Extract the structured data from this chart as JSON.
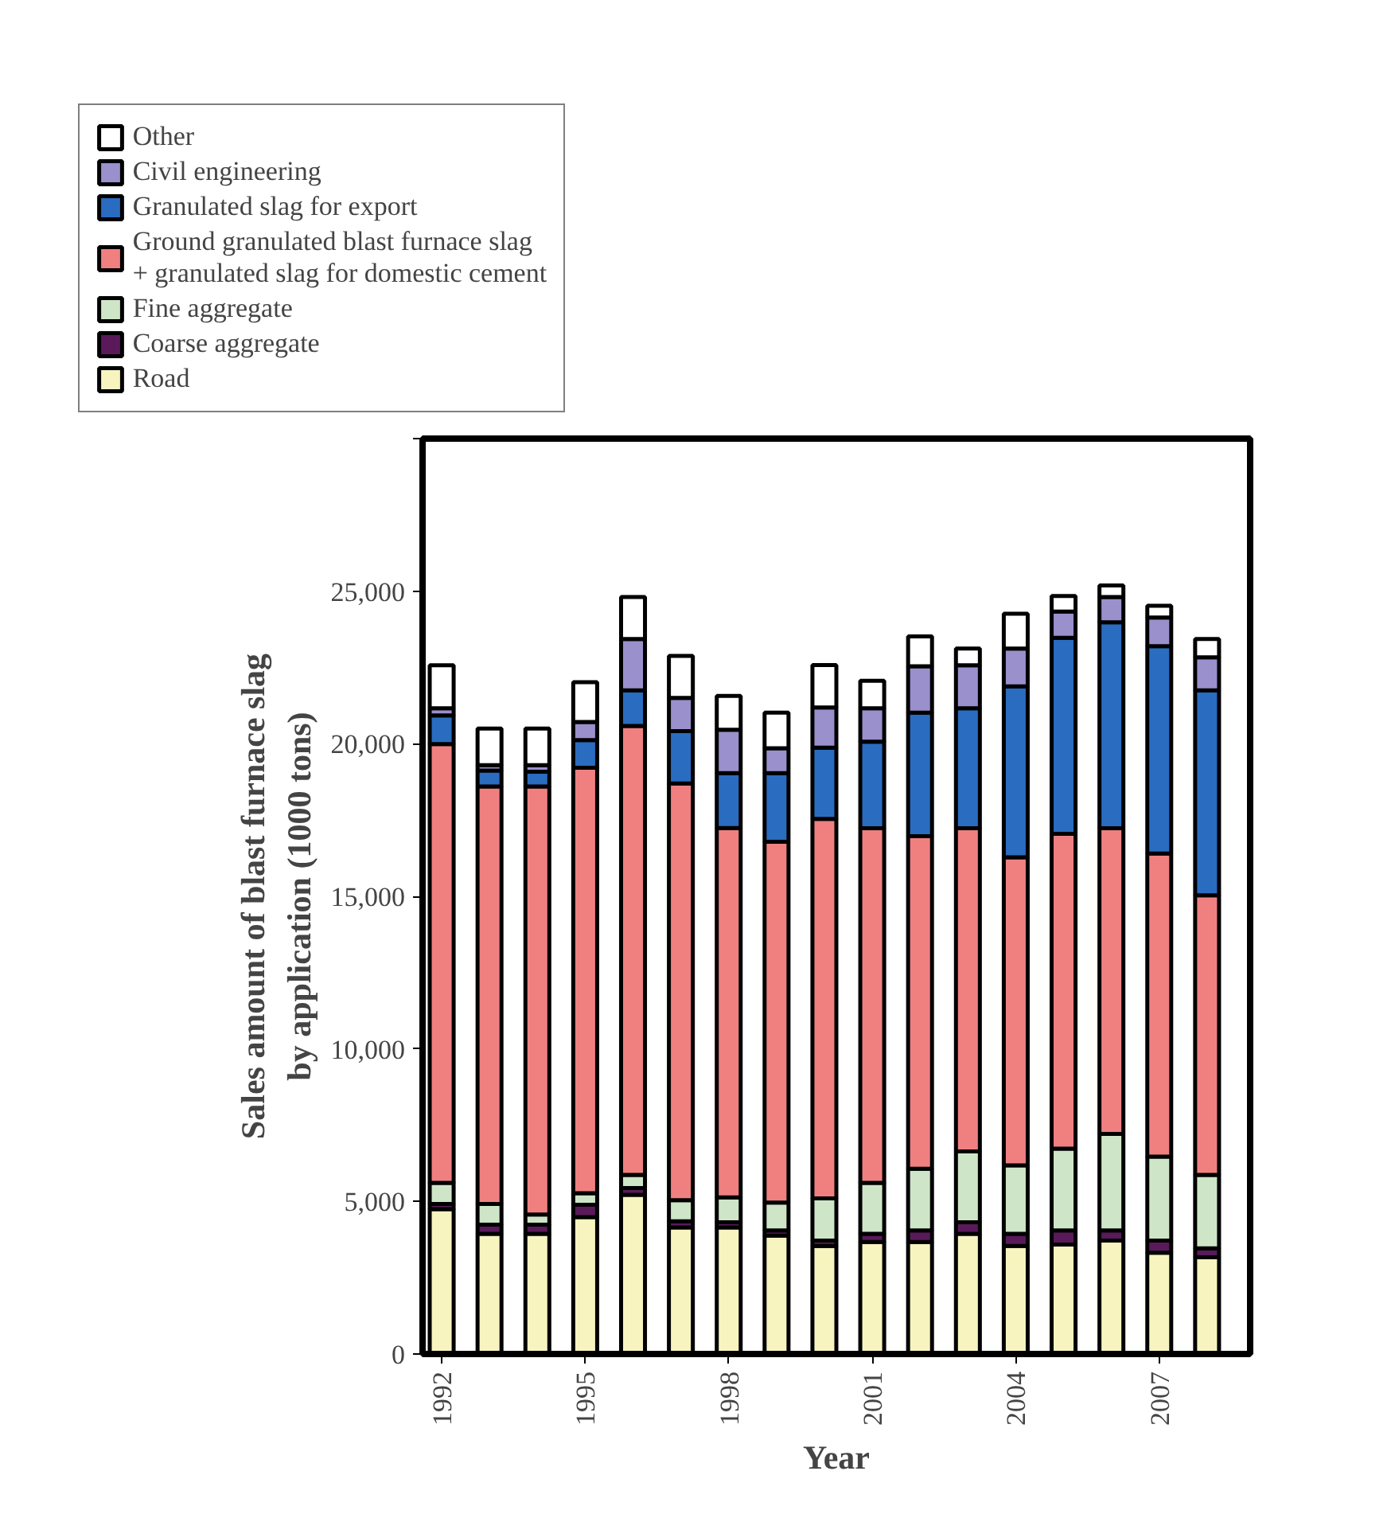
{
  "chart_data": {
    "type": "bar",
    "stacked": true,
    "xlabel": "Year",
    "ylabel": "Sales amount of blast furnace slag\nby application (1000 tons)",
    "x": [
      1992,
      1993,
      1994,
      1995,
      1996,
      1997,
      1998,
      1999,
      2000,
      2001,
      2002,
      2003,
      2004,
      2005,
      2006,
      2007,
      2008
    ],
    "xlim": [
      1991.6,
      2008.9
    ],
    "xticks": [
      1992,
      1995,
      1998,
      2001,
      2004,
      2007
    ],
    "ylim": [
      0,
      30000
    ],
    "yticks": [
      {
        "value": 0,
        "label": "0"
      },
      {
        "value": 5000,
        "label": "5,000"
      },
      {
        "value": 10000,
        "label": "10,000"
      },
      {
        "value": 15000,
        "label": "15,000"
      },
      {
        "value": 20000,
        "label": "20,000"
      },
      {
        "value": 25000,
        "label": "25,000"
      },
      {
        "value": 30000,
        "label": null
      }
    ],
    "grid": false,
    "legend": "top",
    "series": [
      {
        "name": "Road",
        "color": "#f8f4c0",
        "values": [
          4750,
          3940,
          3940,
          4490,
          5220,
          4150,
          4150,
          3880,
          3540,
          3670,
          3670,
          3940,
          3540,
          3590,
          3720,
          3320,
          3170
        ]
      },
      {
        "name": "Coarse aggregate",
        "color": "#5a1a5a",
        "values": [
          170,
          300,
          300,
          400,
          220,
          200,
          170,
          170,
          180,
          270,
          380,
          380,
          400,
          460,
          330,
          400,
          290
        ]
      },
      {
        "name": "Fine aggregate",
        "color": "#cfe5c8",
        "values": [
          690,
          680,
          330,
          380,
          430,
          690,
          810,
          910,
          1380,
          1670,
          2020,
          2320,
          2240,
          2680,
          3160,
          2750,
          2410
        ]
      },
      {
        "name": "Ground granulated blast furnace slag\n+ granulated slag for domestic cement",
        "color": "#f08080",
        "values": [
          14380,
          13680,
          14030,
          13940,
          14710,
          13660,
          12110,
          11830,
          12440,
          11620,
          10900,
          10590,
          10100,
          10320,
          10020,
          9930,
          9160
        ]
      },
      {
        "name": "Granulated slag for export",
        "color": "#2a6cc0",
        "values": [
          940,
          520,
          480,
          910,
          1170,
          1710,
          1800,
          2250,
          2330,
          2840,
          4050,
          3930,
          5600,
          6420,
          6750,
          6800,
          6720
        ]
      },
      {
        "name": "Civil engineering",
        "color": "#9a90cc",
        "values": [
          230,
          180,
          220,
          590,
          1680,
          1090,
          1420,
          810,
          1320,
          1090,
          1520,
          1410,
          1240,
          860,
          830,
          940,
          1080
        ]
      },
      {
        "name": "Other",
        "color": "#ffffff",
        "values": [
          1410,
          1200,
          1200,
          1310,
          1380,
          1380,
          1110,
          1170,
          1390,
          900,
          980,
          550,
          1140,
          510,
          380,
          380,
          600
        ]
      }
    ]
  }
}
